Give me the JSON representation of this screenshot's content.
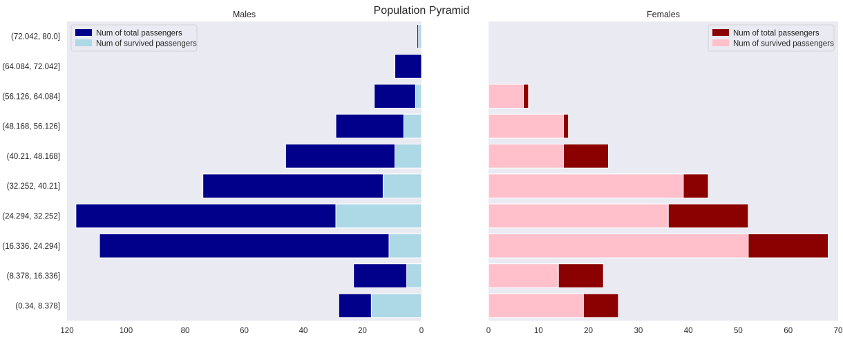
{
  "chart_data": {
    "type": "bar",
    "title": "Population Pyramid",
    "categories": [
      "(0.34, 8.378]",
      "(8.378, 16.336]",
      "(16.336, 24.294]",
      "(24.294, 32.252]",
      "(32.252, 40.21]",
      "(40.21, 48.168]",
      "(48.168, 56.126]",
      "(56.126, 64.084]",
      "(64.084, 72.042]",
      "(72.042, 80.0]"
    ],
    "panels": [
      {
        "name": "males",
        "title": "Males",
        "xlim": [
          120,
          0
        ],
        "ticks": [
          120,
          100,
          80,
          60,
          40,
          20,
          0
        ],
        "legend_position": "top-left",
        "series": [
          {
            "name": "Num of total passengers",
            "color": "#00008B",
            "values": [
              28,
              23,
              109,
              117,
              74,
              46,
              29,
              16,
              9,
              1.5
            ]
          },
          {
            "name": "Num of survived passengers",
            "color": "#ADD8E6",
            "values": [
              17,
              5,
              11,
              29,
              13,
              9,
              6,
              2,
              0,
              1
            ]
          }
        ]
      },
      {
        "name": "females",
        "title": "Females",
        "xlim": [
          0,
          70
        ],
        "ticks": [
          0,
          10,
          20,
          30,
          40,
          50,
          60,
          70
        ],
        "legend_position": "top-right",
        "series": [
          {
            "name": "Num of total passengers",
            "color": "#8B0000",
            "values": [
              26,
              23,
              68,
              52,
              44,
              24,
              16,
              8,
              0,
              0
            ]
          },
          {
            "name": "Num of survived passengers",
            "color": "#FFC0CB",
            "values": [
              19,
              14,
              52,
              36,
              39,
              15,
              15,
              7,
              0,
              0
            ]
          }
        ]
      }
    ]
  }
}
